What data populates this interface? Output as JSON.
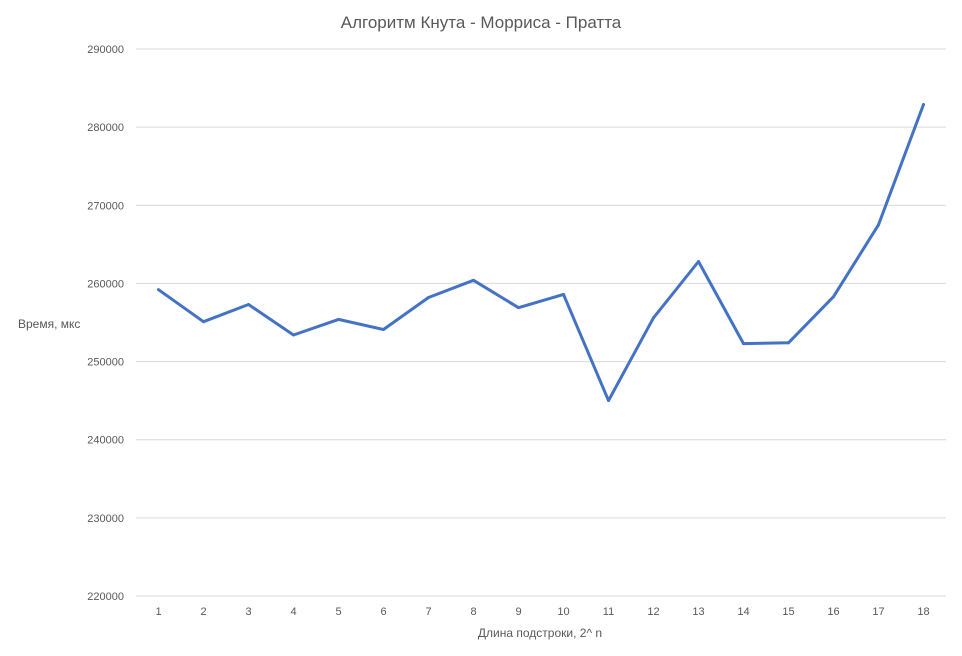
{
  "chart_data": {
    "type": "line",
    "title": "Алгоритм Кнута - Морриса - Пратта",
    "xlabel": "Длина подстроки, 2^ n",
    "ylabel": "Время, мкс",
    "categories": [
      "1",
      "2",
      "3",
      "4",
      "5",
      "6",
      "7",
      "8",
      "9",
      "10",
      "11",
      "12",
      "13",
      "14",
      "15",
      "16",
      "17",
      "18"
    ],
    "series": [
      {
        "color": "#4472c4",
        "values": [
          259200,
          255100,
          257300,
          253400,
          255400,
          254100,
          258200,
          260400,
          256900,
          258600,
          245000,
          255600,
          262800,
          252300,
          252400,
          258300,
          267500,
          282900
        ]
      }
    ],
    "ylim": [
      220000,
      290000
    ],
    "yticks": [
      "220000",
      "230000",
      "240000",
      "250000",
      "260000",
      "270000",
      "280000",
      "290000"
    ],
    "grid": true,
    "legend": "none"
  }
}
